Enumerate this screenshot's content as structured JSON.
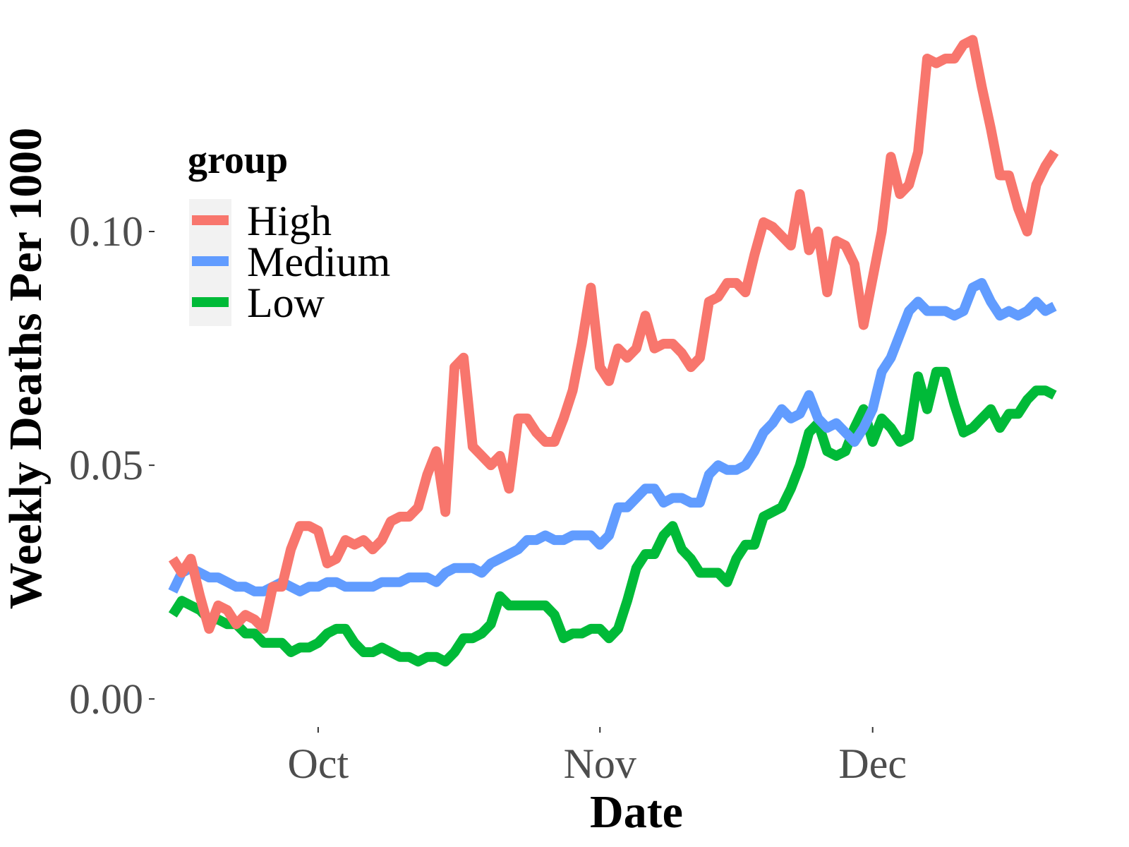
{
  "chart_data": {
    "type": "line",
    "title": "",
    "xlabel": "Date",
    "ylabel": "Weekly Deaths Per 1000",
    "x_start": "2020-09-15",
    "x_end": "2020-12-22",
    "xlim": [
      "2020-09-13",
      "2020-12-24"
    ],
    "ylim": [
      -0.006,
      0.145
    ],
    "x_ticks": [
      {
        "date": "2020-10-01",
        "label": "Oct"
      },
      {
        "date": "2020-11-01",
        "label": "Nov"
      },
      {
        "date": "2020-12-01",
        "label": "Dec"
      }
    ],
    "y_ticks": [
      {
        "value": 0.0,
        "label": "0.00"
      },
      {
        "value": 0.05,
        "label": "0.05"
      },
      {
        "value": 0.1,
        "label": "0.10"
      }
    ],
    "grid": false,
    "legend": {
      "title": "group",
      "position": "top-left"
    },
    "series": [
      {
        "name": "High",
        "color": "#F8766D",
        "values": [
          0.03,
          0.027,
          0.03,
          0.022,
          0.015,
          0.02,
          0.019,
          0.016,
          0.018,
          0.017,
          0.015,
          0.024,
          0.024,
          0.032,
          0.037,
          0.037,
          0.036,
          0.029,
          0.03,
          0.034,
          0.033,
          0.034,
          0.032,
          0.034,
          0.038,
          0.039,
          0.039,
          0.041,
          0.048,
          0.053,
          0.04,
          0.071,
          0.073,
          0.054,
          0.052,
          0.05,
          0.052,
          0.045,
          0.06,
          0.06,
          0.057,
          0.055,
          0.055,
          0.06,
          0.066,
          0.076,
          0.088,
          0.071,
          0.068,
          0.075,
          0.073,
          0.075,
          0.082,
          0.075,
          0.076,
          0.076,
          0.074,
          0.071,
          0.073,
          0.085,
          0.086,
          0.089,
          0.089,
          0.087,
          0.095,
          0.102,
          0.101,
          0.099,
          0.097,
          0.108,
          0.096,
          0.1,
          0.087,
          0.098,
          0.097,
          0.093,
          0.08,
          0.09,
          0.1,
          0.116,
          0.108,
          0.11,
          0.117,
          0.137,
          0.136,
          0.137,
          0.137,
          0.14,
          0.141,
          0.131,
          0.122,
          0.112,
          0.112,
          0.105,
          0.1,
          0.11,
          0.114,
          0.117
        ]
      },
      {
        "name": "Medium",
        "color": "#619CFF",
        "values": [
          0.023,
          0.027,
          0.028,
          0.027,
          0.026,
          0.026,
          0.025,
          0.024,
          0.024,
          0.023,
          0.023,
          0.024,
          0.025,
          0.024,
          0.023,
          0.024,
          0.024,
          0.025,
          0.025,
          0.024,
          0.024,
          0.024,
          0.024,
          0.025,
          0.025,
          0.025,
          0.026,
          0.026,
          0.026,
          0.025,
          0.027,
          0.028,
          0.028,
          0.028,
          0.027,
          0.029,
          0.03,
          0.031,
          0.032,
          0.034,
          0.034,
          0.035,
          0.034,
          0.034,
          0.035,
          0.035,
          0.035,
          0.033,
          0.035,
          0.041,
          0.041,
          0.043,
          0.045,
          0.045,
          0.042,
          0.043,
          0.043,
          0.042,
          0.042,
          0.048,
          0.05,
          0.049,
          0.049,
          0.05,
          0.053,
          0.057,
          0.059,
          0.062,
          0.06,
          0.061,
          0.065,
          0.06,
          0.058,
          0.059,
          0.057,
          0.055,
          0.058,
          0.062,
          0.07,
          0.073,
          0.078,
          0.083,
          0.085,
          0.083,
          0.083,
          0.083,
          0.082,
          0.083,
          0.088,
          0.089,
          0.085,
          0.082,
          0.083,
          0.082,
          0.083,
          0.085,
          0.083,
          0.084
        ]
      },
      {
        "name": "Low",
        "color": "#00BA38",
        "values": [
          0.018,
          0.021,
          0.02,
          0.019,
          0.017,
          0.017,
          0.016,
          0.016,
          0.014,
          0.014,
          0.012,
          0.012,
          0.012,
          0.01,
          0.011,
          0.011,
          0.012,
          0.014,
          0.015,
          0.015,
          0.012,
          0.01,
          0.01,
          0.011,
          0.01,
          0.009,
          0.009,
          0.008,
          0.009,
          0.009,
          0.008,
          0.01,
          0.013,
          0.013,
          0.014,
          0.016,
          0.022,
          0.02,
          0.02,
          0.02,
          0.02,
          0.02,
          0.018,
          0.013,
          0.014,
          0.014,
          0.015,
          0.015,
          0.013,
          0.015,
          0.021,
          0.028,
          0.031,
          0.031,
          0.035,
          0.037,
          0.032,
          0.03,
          0.027,
          0.027,
          0.027,
          0.025,
          0.03,
          0.033,
          0.033,
          0.039,
          0.04,
          0.041,
          0.045,
          0.05,
          0.057,
          0.059,
          0.053,
          0.052,
          0.053,
          0.058,
          0.062,
          0.055,
          0.06,
          0.058,
          0.055,
          0.056,
          0.069,
          0.062,
          0.07,
          0.07,
          0.063,
          0.057,
          0.058,
          0.06,
          0.062,
          0.058,
          0.061,
          0.061,
          0.064,
          0.066,
          0.066,
          0.065
        ]
      }
    ]
  }
}
